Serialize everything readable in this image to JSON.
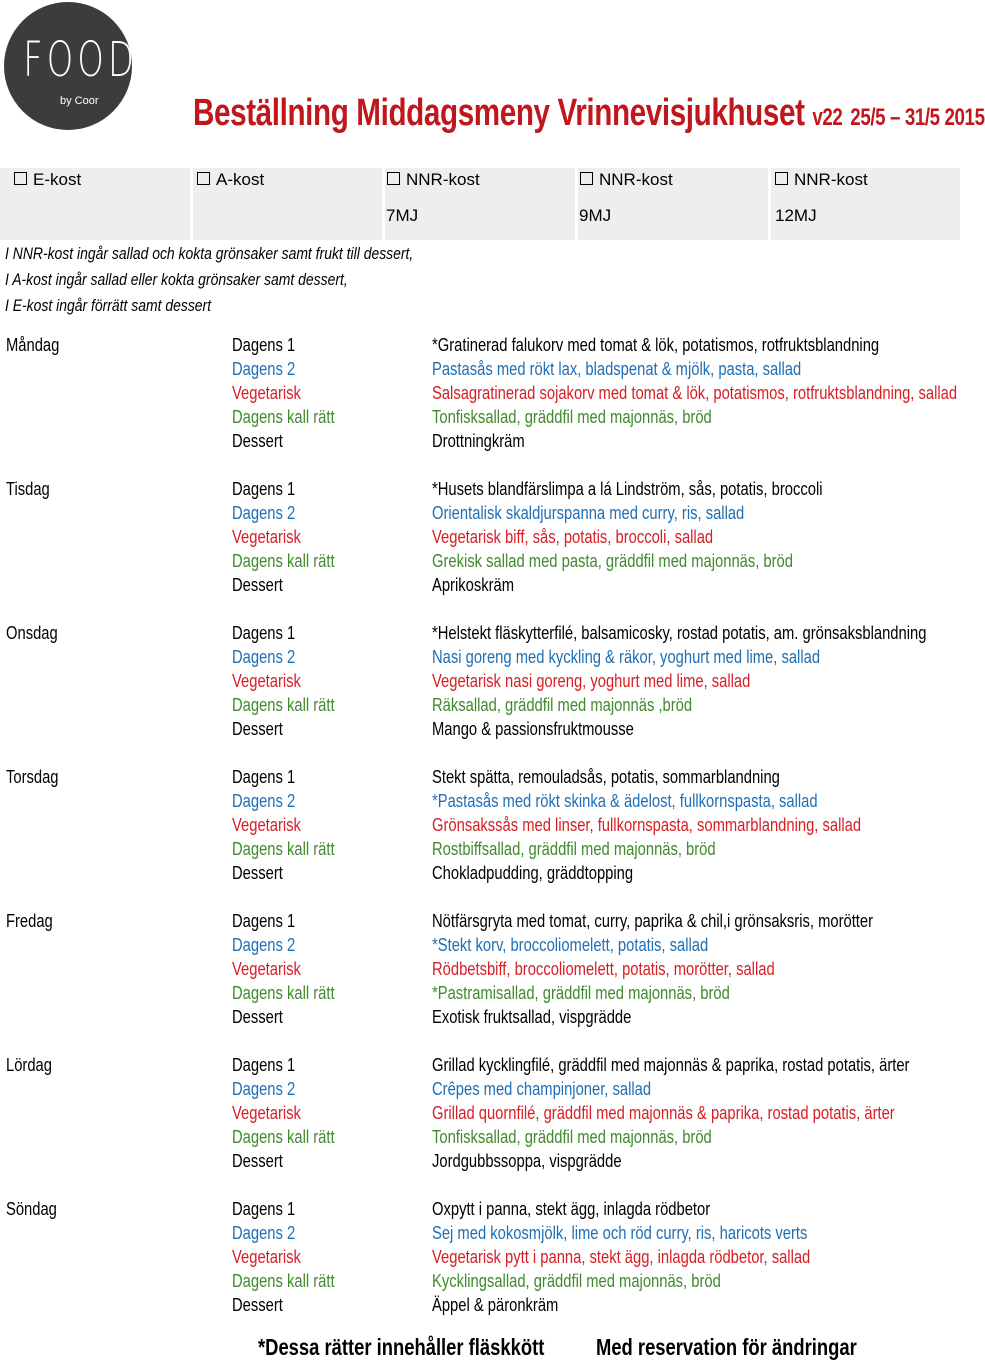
{
  "logo": {
    "word": "FOOD",
    "by": "by Coor"
  },
  "title": {
    "main": "Beställning Middagsmeny Vrinnevisjukhuset",
    "version": "v22",
    "dates": "25/5 – 31/5 2015"
  },
  "kost_options": [
    {
      "label": "E-kost",
      "mj": ""
    },
    {
      "label": "A-kost",
      "mj": ""
    },
    {
      "label": "NNR-kost",
      "mj": "7MJ"
    },
    {
      "label": "NNR-kost",
      "mj": "9MJ"
    },
    {
      "label": "NNR-kost",
      "mj": "12MJ"
    }
  ],
  "info_lines": [
    "I NNR-kost ingår sallad och kokta grönsaker samt frukt till dessert,",
    "I A-kost ingår sallad eller kokta grönsaker samt dessert,",
    "I E-kost ingår förrätt samt dessert"
  ],
  "colors": {
    "title": "#c0171c",
    "dagens1": "#000000",
    "dagens2": "#1f6fb5",
    "vegetarisk": "#d71e24",
    "kall": "#3f8a2c",
    "dessert": "#000000"
  },
  "meal_types": [
    "Dagens 1",
    "Dagens 2",
    "Vegetarisk",
    "Dagens kall rätt",
    "Dessert"
  ],
  "days": [
    {
      "name": "Måndag",
      "dishes": [
        "*Gratinerad falukorv med tomat & lök, potatismos, rotfruktsblandning",
        "Pastasås med rökt lax, bladspenat & mjölk, pasta, sallad",
        "Salsagratinerad sojakorv med tomat & lök, potatismos, rotfruktsblandning, sallad",
        "Tonfisksallad, gräddfil med majonnäs, bröd",
        "Drottningkräm"
      ]
    },
    {
      "name": "Tisdag",
      "dishes": [
        "*Husets blandfärslimpa a lá Lindström, sås, potatis, broccoli",
        "Orientalisk skaldjurspanna med curry, ris, sallad",
        "Vegetarisk biff, sås, potatis, broccoli, sallad",
        "Grekisk sallad med pasta, gräddfil med majonnäs, bröd",
        "Aprikoskräm"
      ]
    },
    {
      "name": "Onsdag",
      "dishes": [
        "*Helstekt fläskytterfilé, balsamicosky, rostad potatis, am. grönsaksblandning",
        "Nasi goreng med kyckling & räkor, yoghurt med lime, sallad",
        "Vegetarisk nasi goreng, yoghurt med lime, sallad",
        "Räksallad, gräddfil med majonnäs ,bröd",
        "Mango & passionsfruktmousse"
      ]
    },
    {
      "name": "Torsdag",
      "dishes": [
        "Stekt spätta, remouladsås, potatis, sommarblandning",
        "*Pastasås med rökt skinka & ädelost, fullkornspasta, sallad",
        "Grönsakssås med linser, fullkornspasta, sommarblandning, sallad",
        "Rostbiffsallad, gräddfil med majonnäs, bröd",
        "Chokladpudding, gräddtopping"
      ]
    },
    {
      "name": "Fredag",
      "dishes": [
        "Nötfärsgryta med tomat, curry, paprika & chil,i grönsaksris, morötter",
        "*Stekt korv, broccoliomelett, potatis, sallad",
        "Rödbetsbiff, broccoliomelett, potatis, morötter, sallad",
        "*Pastramisallad, gräddfil med majonnäs, bröd",
        "Exotisk fruktsallad, vispgrädde"
      ]
    },
    {
      "name": "Lördag",
      "dishes": [
        "Grillad kycklingfilé, gräddfil med majonnäs & paprika, rostad potatis, ärter",
        "Crêpes med champinjoner, sallad",
        "Grillad quornfilé, gräddfil med majonnäs & paprika, rostad potatis, ärter",
        "Tonfisksallad, gräddfil med majonnäs, bröd",
        "Jordgubbssoppa, vispgrädde"
      ]
    },
    {
      "name": "Söndag",
      "dishes": [
        "Oxpytt i panna, stekt ägg, inlagda rödbetor",
        "Sej med kokosmjölk, lime och röd curry, ris, haricots verts",
        "Vegetarisk pytt i panna, stekt ägg, inlagda rödbetor, sallad",
        "Kycklingsallad, gräddfil med majonnäs, bröd",
        "Äppel & päronkräm"
      ]
    }
  ],
  "footer": {
    "left": "*Dessa rätter innehåller fläskkött",
    "right": "Med reservation för ändringar"
  }
}
